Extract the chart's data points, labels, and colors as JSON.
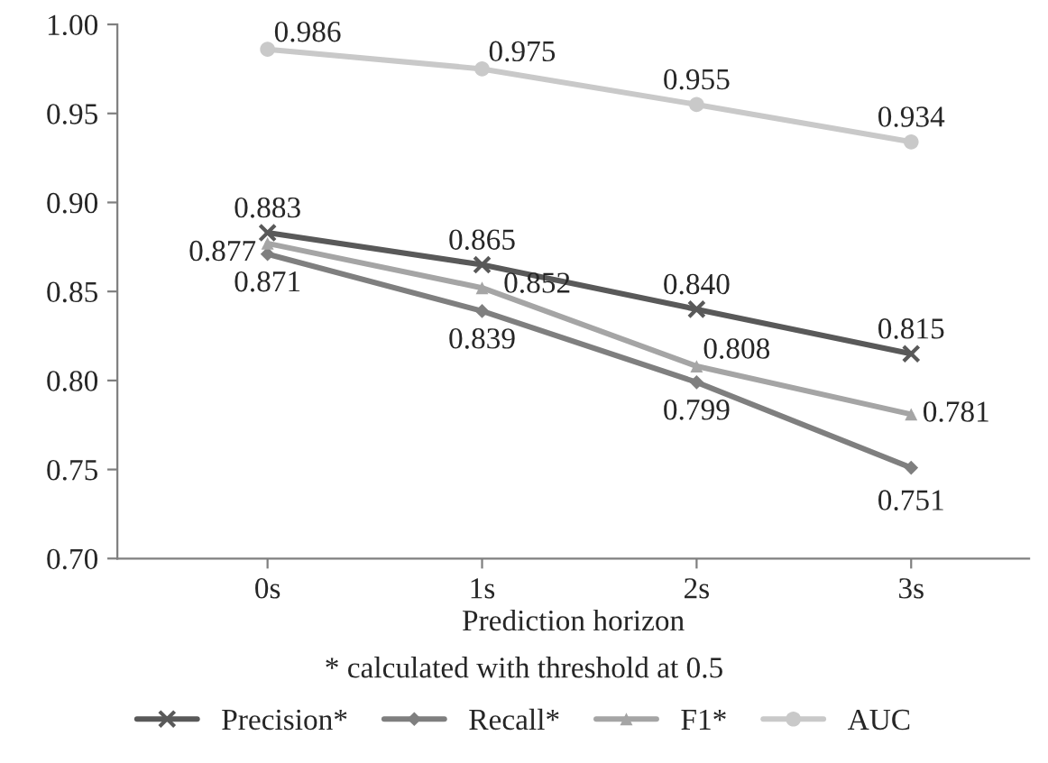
{
  "chart_data": {
    "type": "line",
    "xlabel": "Prediction horizon",
    "annotations": [
      "* calculated with threshold at 0.5"
    ],
    "categories": [
      "0s",
      "1s",
      "2s",
      "3s"
    ],
    "series": [
      {
        "name": "Precision*",
        "color": "#595959",
        "marker": "cross",
        "values": [
          0.883,
          0.865,
          0.84,
          0.815
        ],
        "value_labels": [
          "0.883",
          "0.865",
          "0.840",
          "0.815"
        ]
      },
      {
        "name": "Recall*",
        "color": "#7f7f7f",
        "marker": "diamond",
        "values": [
          0.871,
          0.839,
          0.799,
          0.751
        ]
      },
      {
        "name": "F1*",
        "color": "#a5a5a5",
        "marker": "triangle",
        "values": [
          0.877,
          0.852,
          0.808,
          0.781
        ]
      },
      {
        "name": "AUC",
        "color": "#c9c9c9",
        "marker": "circle",
        "values": [
          0.986,
          0.975,
          0.955,
          0.934
        ]
      }
    ],
    "ylim": [
      0.7,
      1.0
    ],
    "yticks": [
      {
        "value": 0.7,
        "label": "0.70"
      },
      {
        "value": 0.75,
        "label": "0.75"
      },
      {
        "value": 0.8,
        "label": "0.80"
      },
      {
        "value": 0.85,
        "label": "0.85"
      },
      {
        "value": 0.9,
        "label": "0.90"
      },
      {
        "value": 0.95,
        "label": "0.95"
      },
      {
        "value": 1.0,
        "label": "1.00"
      }
    ],
    "data_labels": true,
    "legend": "bottom",
    "line_style": "solid"
  }
}
